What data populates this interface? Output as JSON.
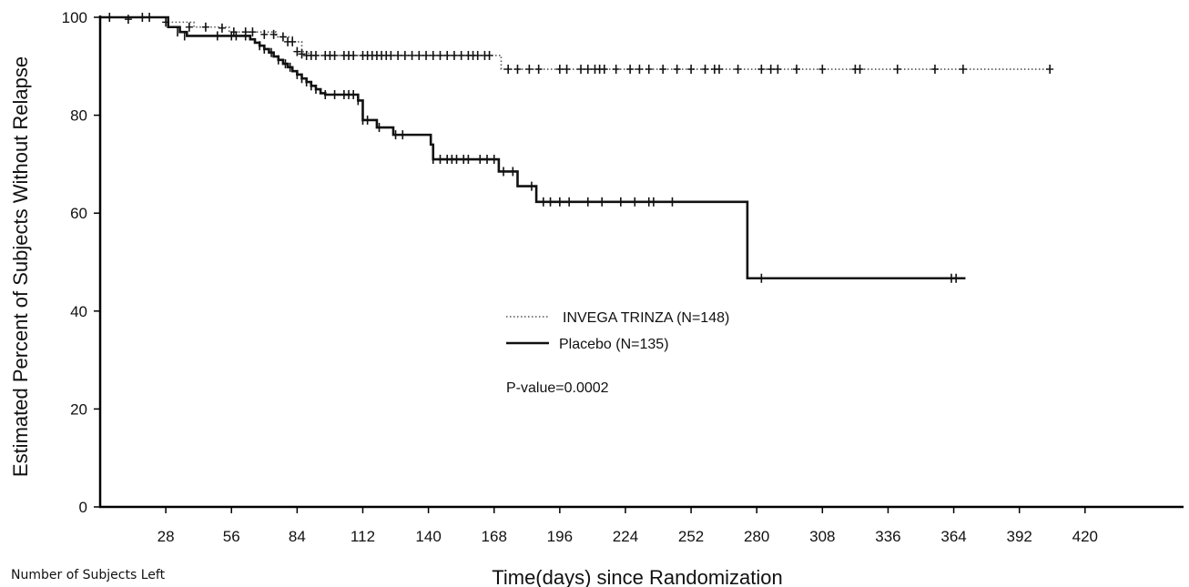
{
  "chart_data": {
    "type": "line",
    "xlabel": "Time(days) since Randomization",
    "ylabel": "Estimated Percent of Subjects Without Relapse",
    "xlim": [
      0,
      462
    ],
    "ylim": [
      0,
      100
    ],
    "xticks": [
      28,
      56,
      84,
      112,
      140,
      168,
      196,
      224,
      252,
      280,
      308,
      336,
      364,
      392,
      420
    ],
    "yticks": [
      0,
      20,
      40,
      60,
      80,
      100
    ],
    "legend_position": "center",
    "grid": false,
    "annotation": "P-value=0.0002",
    "footer_label": "Number of Subjects Left",
    "series": [
      {
        "name": "INVEGA TRINZA (N=148)",
        "style": "dotted",
        "color": "#555555",
        "steps": [
          [
            0,
            100
          ],
          [
            20,
            100
          ],
          [
            28,
            99
          ],
          [
            40,
            98
          ],
          [
            55,
            97
          ],
          [
            75,
            96
          ],
          [
            82,
            95
          ],
          [
            86,
            93
          ],
          [
            89,
            92.2
          ],
          [
            168,
            92.2
          ],
          [
            171,
            89.4
          ],
          [
            405,
            89.4
          ]
        ],
        "censored": [
          [
            4,
            100
          ],
          [
            12,
            99.6
          ],
          [
            18,
            100
          ],
          [
            28,
            99
          ],
          [
            38,
            98
          ],
          [
            45,
            98
          ],
          [
            52,
            97.8
          ],
          [
            57,
            97
          ],
          [
            62,
            97
          ],
          [
            65,
            97
          ],
          [
            70,
            96.5
          ],
          [
            74,
            96.5
          ],
          [
            78,
            96
          ],
          [
            80,
            95
          ],
          [
            82,
            95
          ],
          [
            84,
            93
          ],
          [
            86,
            92.5
          ],
          [
            88,
            92.2
          ],
          [
            90,
            92.2
          ],
          [
            92,
            92.2
          ],
          [
            96,
            92.2
          ],
          [
            98,
            92.2
          ],
          [
            100,
            92.2
          ],
          [
            104,
            92.2
          ],
          [
            106,
            92.2
          ],
          [
            108,
            92.2
          ],
          [
            112,
            92.2
          ],
          [
            114,
            92.2
          ],
          [
            116,
            92.2
          ],
          [
            118,
            92.2
          ],
          [
            120,
            92.2
          ],
          [
            122,
            92.2
          ],
          [
            124,
            92.2
          ],
          [
            127,
            92.2
          ],
          [
            130,
            92.2
          ],
          [
            133,
            92.2
          ],
          [
            136,
            92.2
          ],
          [
            139,
            92.2
          ],
          [
            142,
            92.2
          ],
          [
            145,
            92.2
          ],
          [
            148,
            92.2
          ],
          [
            151,
            92.2
          ],
          [
            154,
            92.2
          ],
          [
            157,
            92.2
          ],
          [
            159,
            92.2
          ],
          [
            161,
            92.2
          ],
          [
            164,
            92.2
          ],
          [
            166,
            92.2
          ],
          [
            174,
            89.4
          ],
          [
            178,
            89.4
          ],
          [
            183,
            89.4
          ],
          [
            187,
            89.4
          ],
          [
            196,
            89.4
          ],
          [
            199,
            89.4
          ],
          [
            205,
            89.4
          ],
          [
            208,
            89.4
          ],
          [
            211,
            89.4
          ],
          [
            213,
            89.4
          ],
          [
            215,
            89.4
          ],
          [
            220,
            89.4
          ],
          [
            226,
            89.4
          ],
          [
            230,
            89.4
          ],
          [
            234,
            89.4
          ],
          [
            240,
            89.4
          ],
          [
            246,
            89.4
          ],
          [
            252,
            89.4
          ],
          [
            258,
            89.4
          ],
          [
            262,
            89.4
          ],
          [
            264,
            89.4
          ],
          [
            272,
            89.4
          ],
          [
            282,
            89.4
          ],
          [
            286,
            89.4
          ],
          [
            289,
            89.4
          ],
          [
            297,
            89.4
          ],
          [
            308,
            89.4
          ],
          [
            322,
            89.4
          ],
          [
            324,
            89.4
          ],
          [
            340,
            89.4
          ],
          [
            356,
            89.4
          ],
          [
            368,
            89.4
          ],
          [
            405,
            89.4
          ]
        ]
      },
      {
        "name": "Placebo (N=135)",
        "style": "solid",
        "color": "#111111",
        "steps": [
          [
            0,
            100
          ],
          [
            27,
            100
          ],
          [
            29,
            98
          ],
          [
            34,
            97
          ],
          [
            37,
            96.2
          ],
          [
            62,
            96.2
          ],
          [
            64,
            95.5
          ],
          [
            66,
            94.8
          ],
          [
            68,
            94.2
          ],
          [
            70,
            93.5
          ],
          [
            72,
            92.8
          ],
          [
            74,
            92
          ],
          [
            76,
            91.3
          ],
          [
            78,
            90.5
          ],
          [
            80,
            89.8
          ],
          [
            82,
            89
          ],
          [
            84,
            88.3
          ],
          [
            86,
            87.5
          ],
          [
            88,
            86.8
          ],
          [
            90,
            86
          ],
          [
            92,
            85.3
          ],
          [
            94,
            84.5
          ],
          [
            96,
            84.2
          ],
          [
            108,
            84.2
          ],
          [
            110,
            83
          ],
          [
            112,
            79
          ],
          [
            117,
            79
          ],
          [
            118,
            77.5
          ],
          [
            124,
            77.5
          ],
          [
            125,
            76
          ],
          [
            140,
            76
          ],
          [
            141,
            74
          ],
          [
            142,
            71
          ],
          [
            169,
            71
          ],
          [
            170,
            68.5
          ],
          [
            176,
            68.5
          ],
          [
            178,
            65.5
          ],
          [
            184,
            65.5
          ],
          [
            186,
            62.3
          ],
          [
            275,
            62.3
          ],
          [
            276,
            46.7
          ],
          [
            369,
            46.7
          ]
        ],
        "censored": [
          [
            21,
            100
          ],
          [
            33,
            97
          ],
          [
            36,
            96.2
          ],
          [
            50,
            96.2
          ],
          [
            56,
            96.2
          ],
          [
            58,
            96.2
          ],
          [
            62,
            96.2
          ],
          [
            68,
            94.2
          ],
          [
            70,
            93.5
          ],
          [
            73,
            92.8
          ],
          [
            76,
            91.3
          ],
          [
            79,
            90.5
          ],
          [
            81,
            89.8
          ],
          [
            84,
            88.3
          ],
          [
            86,
            87.5
          ],
          [
            88,
            86.8
          ],
          [
            90,
            86
          ],
          [
            92,
            85.3
          ],
          [
            96,
            84.2
          ],
          [
            100,
            84.2
          ],
          [
            104,
            84.2
          ],
          [
            106,
            84.2
          ],
          [
            108,
            84.2
          ],
          [
            110,
            83
          ],
          [
            112,
            79
          ],
          [
            114,
            79
          ],
          [
            119,
            77.5
          ],
          [
            126,
            76
          ],
          [
            129,
            76
          ],
          [
            142,
            71
          ],
          [
            145,
            71
          ],
          [
            148,
            71
          ],
          [
            150,
            71
          ],
          [
            152,
            71
          ],
          [
            155,
            71
          ],
          [
            157,
            71
          ],
          [
            162,
            71
          ],
          [
            165,
            71
          ],
          [
            168,
            71
          ],
          [
            172,
            68.5
          ],
          [
            176,
            68.5
          ],
          [
            184,
            65.5
          ],
          [
            189,
            62.3
          ],
          [
            192,
            62.3
          ],
          [
            196,
            62.3
          ],
          [
            200,
            62.3
          ],
          [
            208,
            62.3
          ],
          [
            214,
            62.3
          ],
          [
            222,
            62.3
          ],
          [
            228,
            62.3
          ],
          [
            234,
            62.3
          ],
          [
            236,
            62.3
          ],
          [
            244,
            62.3
          ],
          [
            282,
            46.7
          ],
          [
            363,
            46.7
          ],
          [
            365,
            46.7
          ]
        ]
      }
    ]
  }
}
